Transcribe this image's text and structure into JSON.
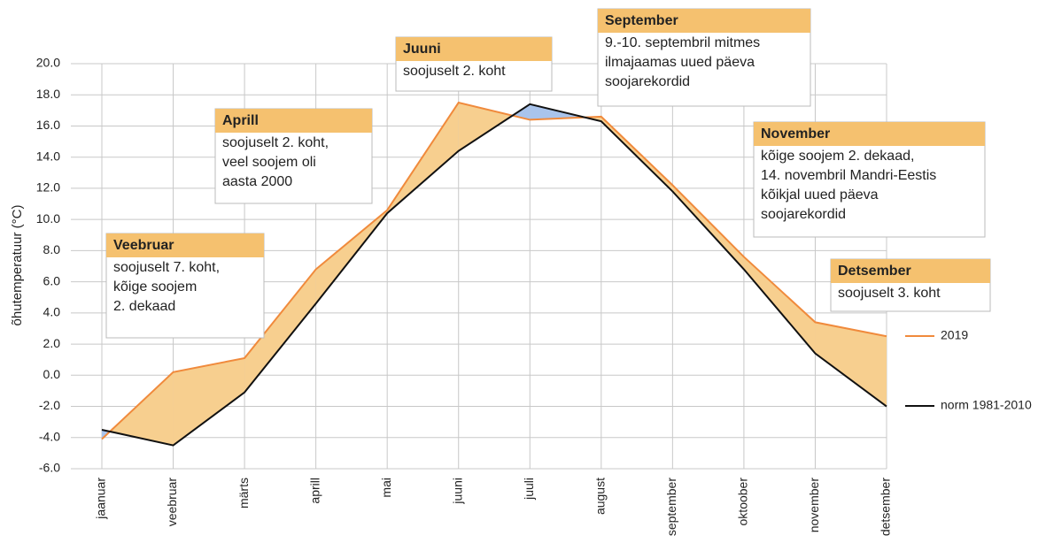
{
  "chart_data": {
    "type": "line",
    "y_label": "õhutemperatuur (°C)",
    "categories": [
      "jaanuar",
      "veebruar",
      "märts",
      "aprill",
      "mai",
      "juuni",
      "juuli",
      "august",
      "september",
      "oktoober",
      "november",
      "detsember"
    ],
    "series": [
      {
        "name": "2019",
        "color": "#f08a3c",
        "values": [
          -4.1,
          0.2,
          1.1,
          6.8,
          10.6,
          17.5,
          16.4,
          16.6,
          12.2,
          7.6,
          3.4,
          2.5
        ]
      },
      {
        "name": "norm 1981-2010",
        "color": "#111111",
        "values": [
          -3.5,
          -4.5,
          -1.1,
          4.6,
          10.4,
          14.4,
          17.4,
          16.3,
          11.8,
          6.8,
          1.4,
          -2.0
        ]
      }
    ],
    "fill_above_color": "#f7cf8f",
    "fill_below_color": "#a9c4ec",
    "ylim": [
      -6,
      20
    ],
    "yticks": [
      {
        "value": -6,
        "label": "-6.0"
      },
      {
        "value": -4,
        "label": "-4.0"
      },
      {
        "value": -2,
        "label": "-2.0"
      },
      {
        "value": 0,
        "label": "0.0"
      },
      {
        "value": 2,
        "label": "2.0"
      },
      {
        "value": 4,
        "label": "4.0"
      },
      {
        "value": 6,
        "label": "6.0"
      },
      {
        "value": 8,
        "label": "8.0"
      },
      {
        "value": 10,
        "label": "10.0"
      },
      {
        "value": 12,
        "label": "12.0"
      },
      {
        "value": 14,
        "label": "14.0"
      },
      {
        "value": 16,
        "label": "16.0"
      },
      {
        "value": 18,
        "label": "18.0"
      },
      {
        "value": 20,
        "label": "20.0"
      }
    ],
    "grid": true,
    "annotations": [
      {
        "title": "Veebruar",
        "lines": [
          "soojuselt 7. koht,",
          "kõige soojem",
          "2. dekaad"
        ]
      },
      {
        "title": "Aprill",
        "lines": [
          "soojuselt 2. koht,",
          "veel soojem oli",
          "aasta 2000"
        ]
      },
      {
        "title": "Juuni",
        "lines": [
          "soojuselt 2. koht"
        ]
      },
      {
        "title": "September",
        "lines": [
          "9.-10. septembril mitmes",
          "ilmajaamas uued päeva",
          "soojarekordid"
        ]
      },
      {
        "title": "November",
        "lines": [
          "kõige soojem 2. dekaad,",
          "14. novembril Mandri-Eestis",
          "kõikjal uued päeva",
          "soojarekordid"
        ]
      },
      {
        "title": "Detsember",
        "lines": [
          "soojuselt 3. koht"
        ]
      }
    ]
  }
}
